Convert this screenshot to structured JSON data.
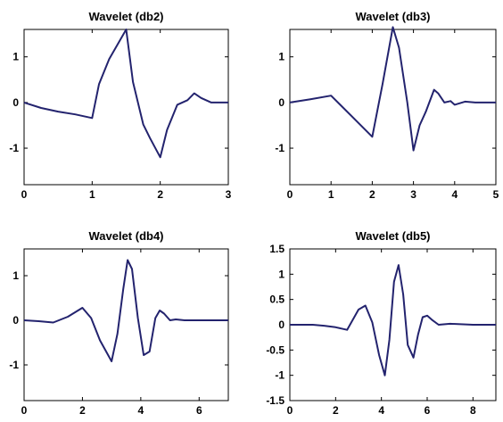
{
  "chart_data": [
    {
      "type": "line",
      "title": "Wavelet (db2)",
      "xlim": [
        0,
        3
      ],
      "ylim": [
        -1.8,
        1.6
      ],
      "xticks": [
        0,
        1,
        2,
        3
      ],
      "yticks": [
        -1,
        0,
        1
      ],
      "xtick_labels": [
        "0",
        "1",
        "2",
        "3"
      ],
      "ytick_labels": [
        "-1",
        "0",
        "1"
      ],
      "grid": false,
      "color": "#23236e",
      "series": [
        {
          "x": [
            0,
            0.25,
            0.5,
            0.75,
            1.0,
            1.1,
            1.25,
            1.5,
            1.6,
            1.75,
            1.85,
            2.0,
            2.1,
            2.25,
            2.4,
            2.5,
            2.6,
            2.75,
            3.0
          ],
          "y": [
            0,
            -0.12,
            -0.2,
            -0.26,
            -0.34,
            0.4,
            0.95,
            1.6,
            0.45,
            -0.48,
            -0.78,
            -1.2,
            -0.6,
            -0.05,
            0.05,
            0.2,
            0.1,
            0.0,
            0.0
          ]
        }
      ]
    },
    {
      "type": "line",
      "title": "Wavelet (db3)",
      "xlim": [
        0,
        5
      ],
      "ylim": [
        -1.8,
        1.6
      ],
      "xticks": [
        0,
        1,
        2,
        3,
        4,
        5
      ],
      "yticks": [
        -1,
        0,
        1
      ],
      "xtick_labels": [
        "0",
        "1",
        "2",
        "3",
        "4",
        "5"
      ],
      "ytick_labels": [
        "-1",
        "0",
        "1"
      ],
      "grid": false,
      "color": "#23236e",
      "series": [
        {
          "x": [
            0,
            0.5,
            1.0,
            1.5,
            2.0,
            2.25,
            2.5,
            2.65,
            2.85,
            3.0,
            3.15,
            3.3,
            3.5,
            3.6,
            3.75,
            3.9,
            4.0,
            4.25,
            4.5,
            5.0
          ],
          "y": [
            0,
            0.07,
            0.15,
            -0.3,
            -0.75,
            0.4,
            1.65,
            1.2,
            0.0,
            -1.05,
            -0.5,
            -0.2,
            0.28,
            0.2,
            0.0,
            0.03,
            -0.05,
            0.02,
            0.0,
            0.0
          ]
        }
      ]
    },
    {
      "type": "line",
      "title": "Wavelet (db4)",
      "xlim": [
        0,
        7
      ],
      "ylim": [
        -1.8,
        1.6
      ],
      "xticks": [
        0,
        2,
        4,
        6
      ],
      "yticks": [
        -1,
        0,
        1
      ],
      "xtick_labels": [
        "0",
        "2",
        "4",
        "6"
      ],
      "ytick_labels": [
        "-1",
        "0",
        "1"
      ],
      "grid": false,
      "color": "#23236e",
      "series": [
        {
          "x": [
            0,
            0.5,
            1.0,
            1.5,
            2.0,
            2.3,
            2.6,
            3.0,
            3.2,
            3.4,
            3.55,
            3.7,
            3.9,
            4.1,
            4.3,
            4.5,
            4.65,
            4.8,
            5.0,
            5.2,
            5.5,
            6.0,
            7.0
          ],
          "y": [
            0,
            -0.02,
            -0.05,
            0.08,
            0.28,
            0.05,
            -0.45,
            -0.92,
            -0.3,
            0.7,
            1.35,
            1.15,
            0.05,
            -0.78,
            -0.7,
            0.05,
            0.22,
            0.15,
            0.0,
            0.02,
            0.0,
            0.0,
            0.0
          ]
        }
      ]
    },
    {
      "type": "line",
      "title": "Wavelet (db5)",
      "xlim": [
        0,
        9
      ],
      "ylim": [
        -1.5,
        1.5
      ],
      "xticks": [
        0,
        2,
        4,
        6,
        8
      ],
      "yticks": [
        -1.5,
        -1,
        -0.5,
        0,
        0.5,
        1,
        1.5
      ],
      "xtick_labels": [
        "0",
        "2",
        "4",
        "6",
        "8"
      ],
      "ytick_labels": [
        "-1.5",
        "-1",
        "-0.5",
        "0",
        "0.5",
        "1",
        "1.5"
      ],
      "grid": false,
      "color": "#23236e",
      "series": [
        {
          "x": [
            0,
            1.0,
            1.5,
            2.0,
            2.5,
            3.0,
            3.3,
            3.6,
            3.9,
            4.15,
            4.35,
            4.55,
            4.75,
            4.95,
            5.15,
            5.4,
            5.6,
            5.8,
            6.0,
            6.2,
            6.5,
            7.0,
            8.0,
            9.0
          ],
          "y": [
            0,
            0.0,
            -0.02,
            -0.05,
            -0.1,
            0.3,
            0.38,
            0.05,
            -0.6,
            -1.0,
            -0.3,
            0.85,
            1.18,
            0.6,
            -0.4,
            -0.65,
            -0.2,
            0.15,
            0.18,
            0.1,
            0.0,
            0.02,
            0.0,
            0.0
          ]
        }
      ]
    }
  ]
}
